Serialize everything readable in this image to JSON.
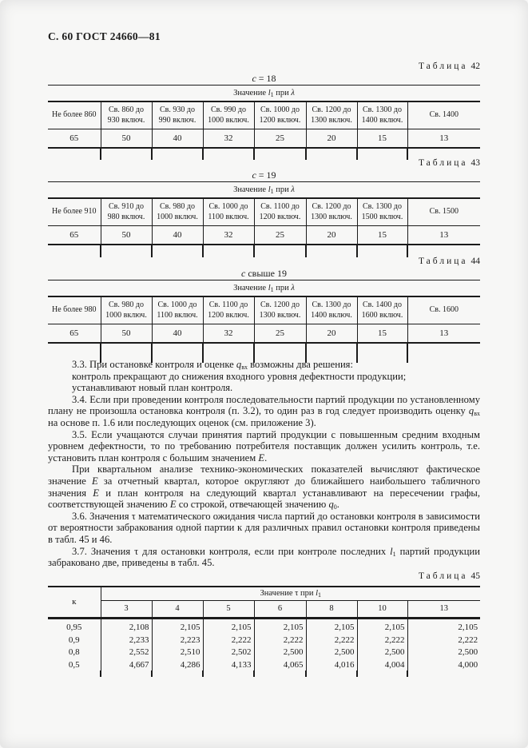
{
  "page": {
    "header": "С. 60 ГОСТ 24660—81"
  },
  "colors": {
    "ink": "#1b1b1b",
    "paper": "#f7f7f6"
  },
  "tables": [
    {
      "caption_word": "Таблица",
      "caption_num": "42",
      "condition_html": "<i>с</i> = 18",
      "span_header_html": "Значение <i>l</i><sub>1</sub> при <i>λ</i>",
      "col_headers": [
        "Не более 860",
        "Св. 860 до 930 включ.",
        "Св. 930 до 990 включ.",
        "Св. 990 до 1000 включ.",
        "Св. 1000 до 1200 включ.",
        "Св. 1200 до 1300 включ.",
        "Св. 1300 до 1400 включ.",
        "Св. 1400"
      ],
      "values": [
        "65",
        "50",
        "40",
        "32",
        "25",
        "20",
        "15",
        "13"
      ]
    },
    {
      "caption_word": "Таблица",
      "caption_num": "43",
      "condition_html": "<i>с</i> = 19",
      "span_header_html": "Значение <i>l</i><sub>1</sub> при <i>λ</i>",
      "col_headers": [
        "Не более 910",
        "Св. 910 до 980 включ.",
        "Св. 980 до 1000 включ.",
        "Св. 1000 до 1100 включ.",
        "Св. 1100 до 1200 включ.",
        "Св. 1200 до 1300 включ.",
        "Св. 1300 до 1500 включ.",
        "Св. 1500"
      ],
      "values": [
        "65",
        "50",
        "40",
        "32",
        "25",
        "20",
        "15",
        "13"
      ]
    },
    {
      "caption_word": "Таблица",
      "caption_num": "44",
      "condition_html": "<i>с</i> свыше 19",
      "span_header_html": "Значение <i>l</i><sub>1</sub> при <i>λ</i>",
      "col_headers": [
        "Не более 980",
        "Св. 980 до 1000 включ.",
        "Св. 1000 до 1100 включ.",
        "Св. 1100 до 1200 включ.",
        "Св. 1200 до 1300 включ.",
        "Св. 1300 до 1400 включ.",
        "Св. 1400 до 1600 включ.",
        "Св. 1600"
      ],
      "values": [
        "65",
        "50",
        "40",
        "32",
        "25",
        "20",
        "15",
        "13"
      ]
    }
  ],
  "paragraphs": [
    {
      "html": "3.3. При остановке контроля и оценке <i>q</i><sub>вх</sub> возможны два решения:"
    },
    {
      "html": "контроль прекращают до снижения входного уровня дефектности продукции;"
    },
    {
      "html": "устанавливают новый план контроля."
    },
    {
      "html": "3.4. Если при проведении контроля последовательности партий продукции по установленному плану не произошла остановка контроля (п. 3.2), то один раз в год следует производить оценку <i>q</i><sub>вх</sub> на основе п. 1.6 или последующих оценок (см. приложение 3)."
    },
    {
      "html": "3.5. Если учащаются случаи принятия партий продукции с повышенным средним входным уровнем дефектности, то по требованию потребителя поставщик должен усилить контроль, т.е. установить план контроля с большим значением <i>Е</i>."
    },
    {
      "html": "При квартальном анализе технико-экономических показателей вычисляют фактическое значение <i>Е</i> за отчетный квартал, которое округляют до ближайшего наибольшего табличного значения <i>Е</i> и план контроля на следующий квартал устанавливают на пересечении графы, соответствующей значению <i>Е</i> со строкой, отвечающей значению <i>q</i><sub>0</sub>."
    },
    {
      "html": "3.6. Значения τ математического ожидания числа партий до остановки контроля в зависимости от вероятности забракования одной партии к для различных правил остановки контроля приведены в табл. 45 и 46."
    },
    {
      "html": "3.7. Значения τ для остановки контроля, если при контроле последних <i>l</i><sub>1</sub> партий продукции забраковано две, приведены в табл. 45."
    }
  ],
  "table45": {
    "caption_word": "Таблица",
    "caption_num": "45",
    "corner_label": "к",
    "span_header_html": "Значение τ при <i>l</i><sub>1</sub>",
    "col_headers": [
      "3",
      "4",
      "5",
      "6",
      "8",
      "10",
      "13"
    ],
    "rows": [
      {
        "k": "0,95",
        "values": [
          "2,108",
          "2,105",
          "2,105",
          "2,105",
          "2,105",
          "2,105",
          "2,105"
        ]
      },
      {
        "k": "0,9",
        "values": [
          "2,233",
          "2,223",
          "2,222",
          "2,222",
          "2,222",
          "2,222",
          "2,222"
        ]
      },
      {
        "k": "0,8",
        "values": [
          "2,552",
          "2,510",
          "2,502",
          "2,500",
          "2,500",
          "2,500",
          "2,500"
        ]
      },
      {
        "k": "0,5",
        "values": [
          "4,667",
          "4,286",
          "4,133",
          "4,065",
          "4,016",
          "4,004",
          "4,000"
        ]
      }
    ]
  }
}
